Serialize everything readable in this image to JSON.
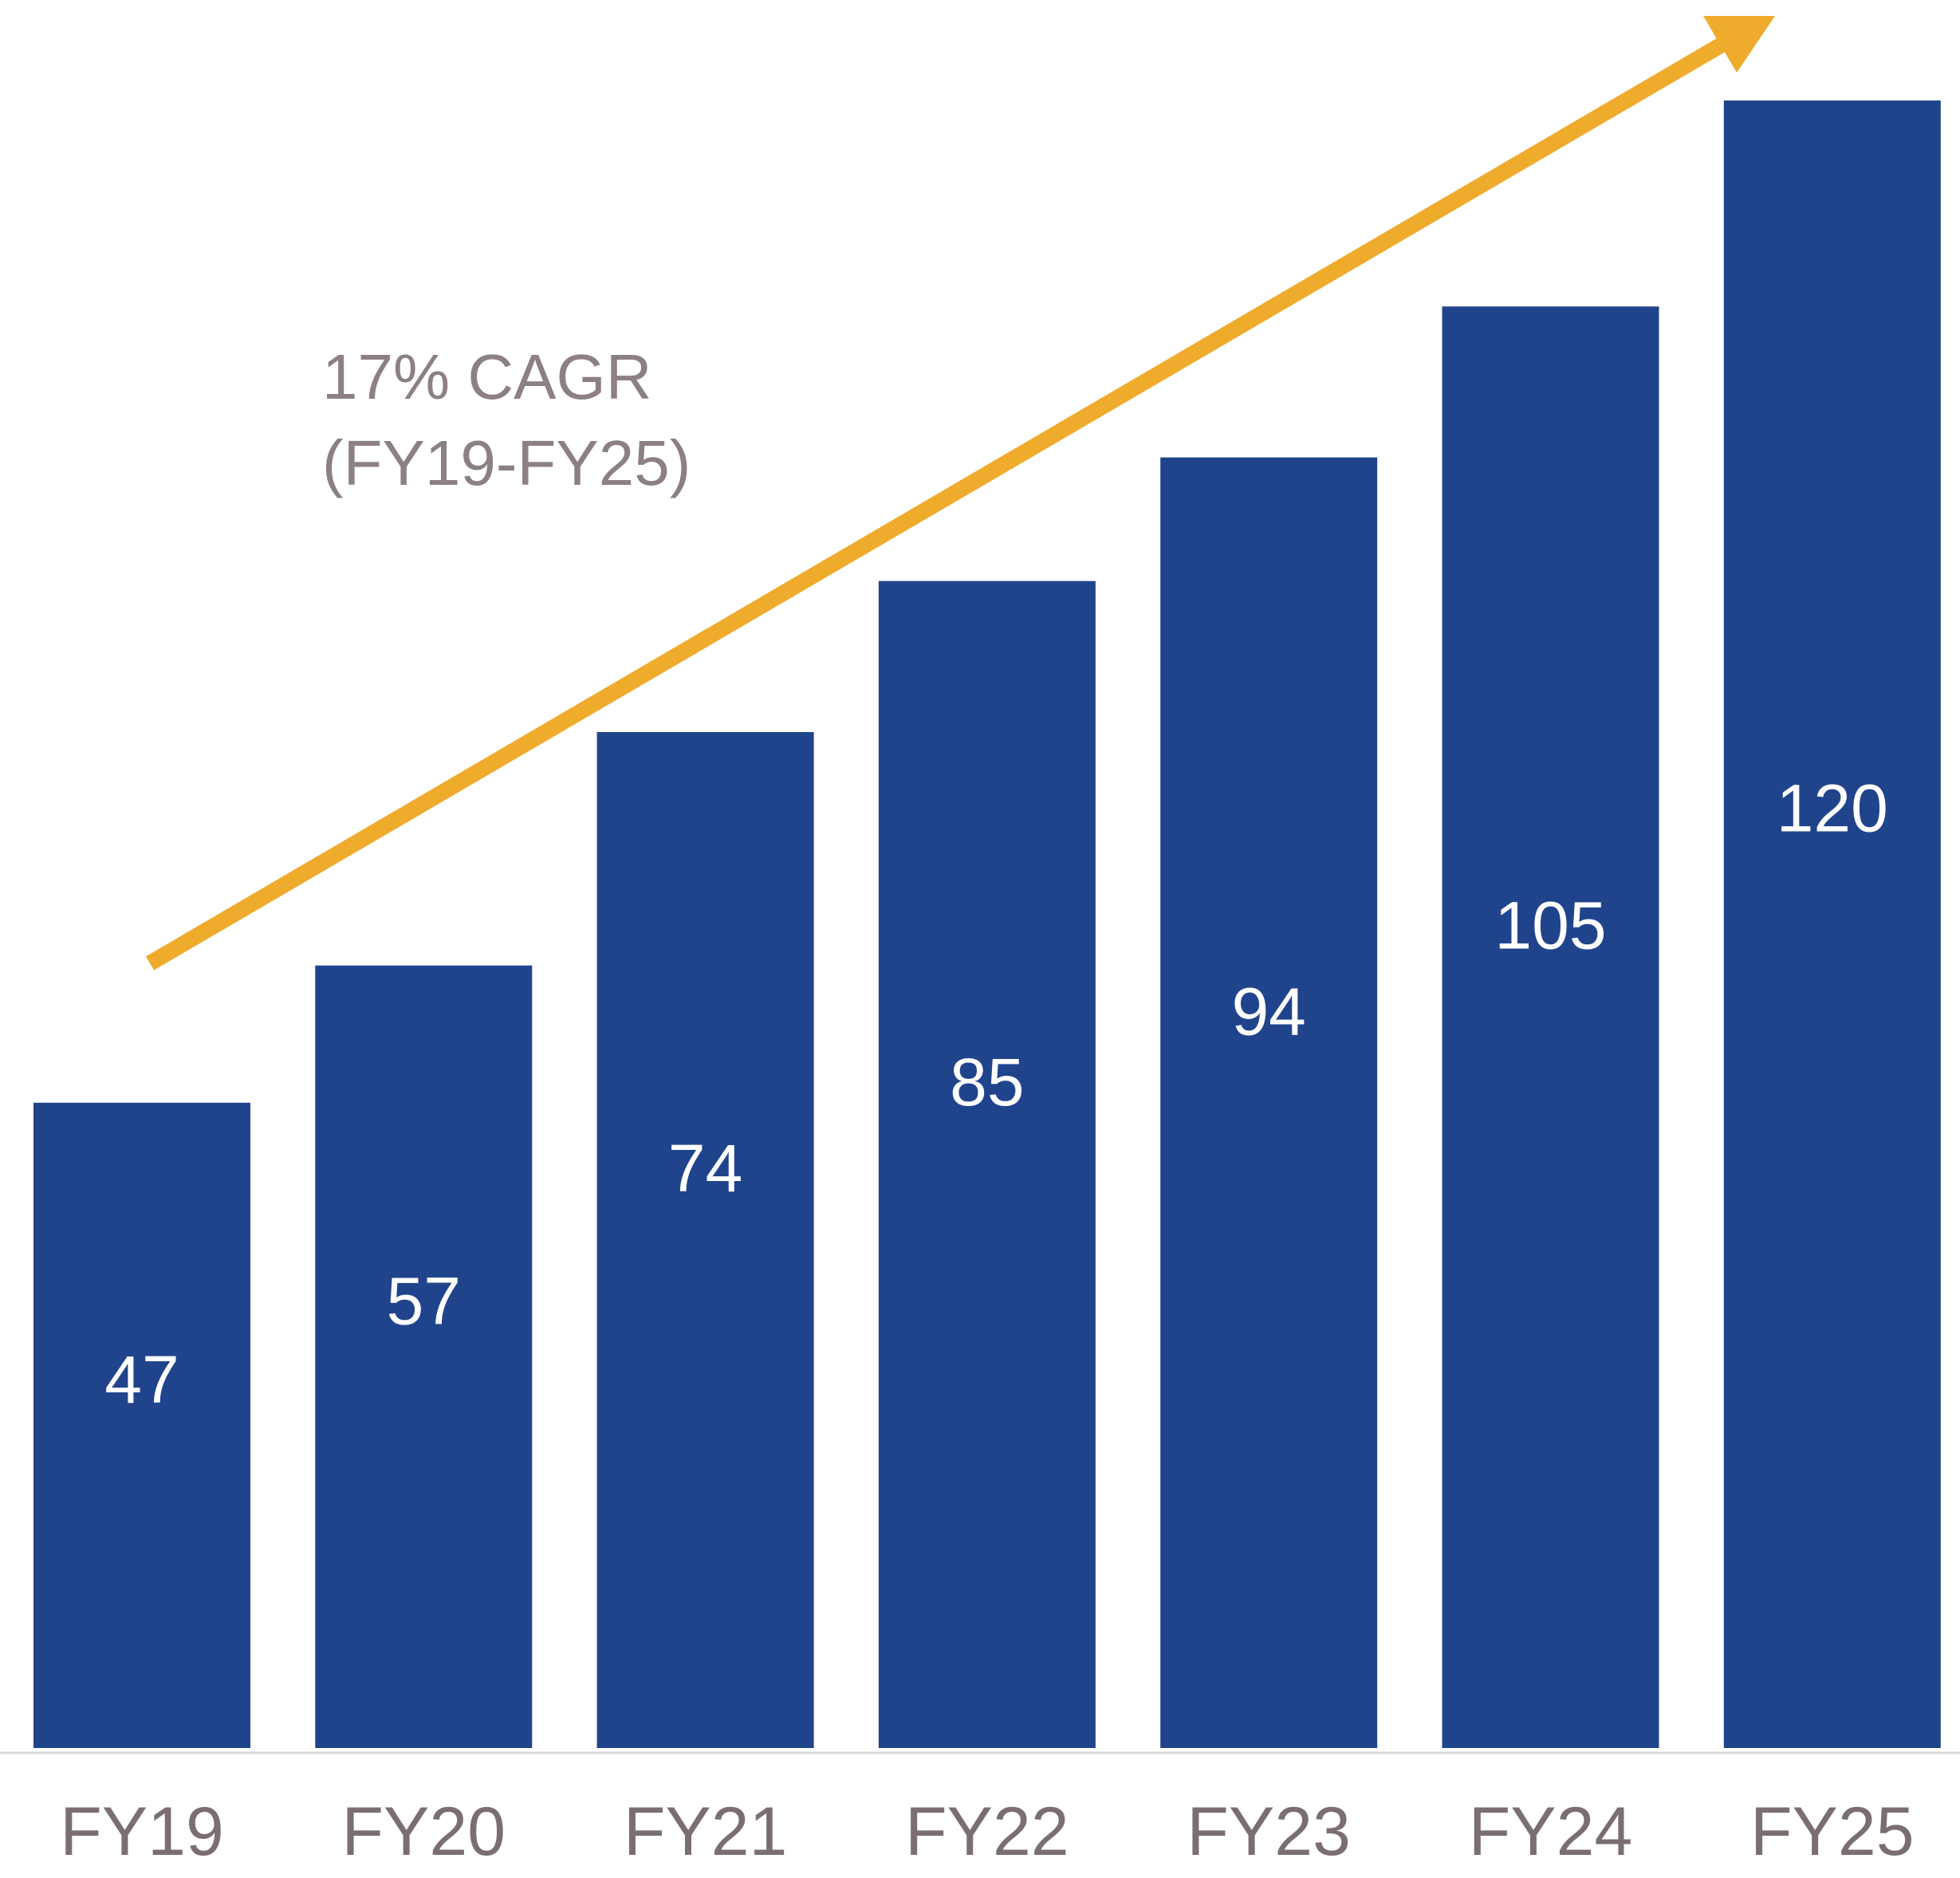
{
  "chart_data": {
    "type": "bar",
    "title": "",
    "xlabel": "",
    "ylabel": "",
    "categories": [
      "FY19",
      "FY20",
      "FY21",
      "FY22",
      "FY23",
      "FY24",
      "FY25"
    ],
    "values": [
      47,
      57,
      74,
      85,
      94,
      105,
      120
    ],
    "ylim": [
      0,
      120
    ],
    "grid": false,
    "legend": "none",
    "data_labels": "inside-bar",
    "annotation": {
      "line1": "17% CAGR",
      "line2": "(FY19-FY25)"
    },
    "trend_arrow": true,
    "colors": {
      "bar": "#20448c",
      "arrow": "#efab2c",
      "axis": "#d8d8d8",
      "tick_text": "#7a6e70",
      "annotation_text": "#8c8083",
      "value_text": "#ffffff"
    }
  }
}
